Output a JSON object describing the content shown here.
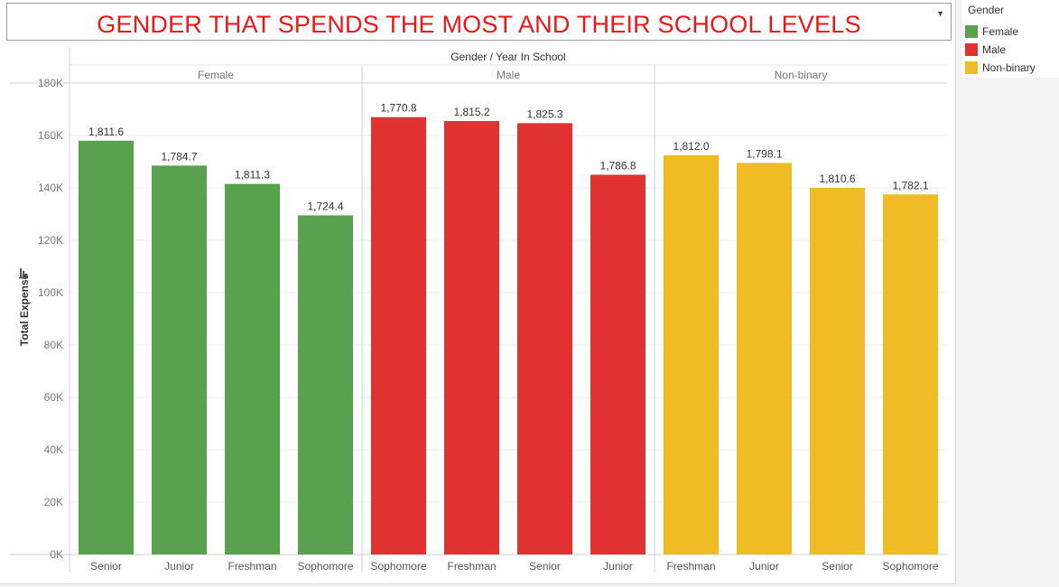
{
  "title": "GENDER THAT SPENDS THE MOST AND THEIR SCHOOL LEVELS",
  "legend": {
    "title": "Gender",
    "items": [
      {
        "label": "Female",
        "color": "#59a14f"
      },
      {
        "label": "Male",
        "color": "#e03231"
      },
      {
        "label": "Non-binary",
        "color": "#f0bc26"
      }
    ]
  },
  "chart_data": {
    "type": "bar",
    "header": "Gender  /  Year In School",
    "ylabel": "Total Expense",
    "ylim": [
      0,
      180000
    ],
    "yticks": [
      {
        "value": 0,
        "label": "0K"
      },
      {
        "value": 20000,
        "label": "20K"
      },
      {
        "value": 40000,
        "label": "40K"
      },
      {
        "value": 60000,
        "label": "60K"
      },
      {
        "value": 80000,
        "label": "80K"
      },
      {
        "value": 100000,
        "label": "100K"
      },
      {
        "value": 120000,
        "label": "120K"
      },
      {
        "value": 140000,
        "label": "140K"
      },
      {
        "value": 160000,
        "label": "160K"
      },
      {
        "value": 180000,
        "label": "180K"
      }
    ],
    "grid": true,
    "legend_position": "right",
    "groups": [
      {
        "name": "Female",
        "color": "#59a14f",
        "bars": [
          {
            "category": "Senior",
            "value": 158000,
            "label": "1,811.6"
          },
          {
            "category": "Junior",
            "value": 148500,
            "label": "1,784.7"
          },
          {
            "category": "Freshman",
            "value": 141500,
            "label": "1,811.3"
          },
          {
            "category": "Sophomore",
            "value": 129500,
            "label": "1,724.4"
          }
        ]
      },
      {
        "name": "Male",
        "color": "#e03231",
        "bars": [
          {
            "category": "Sophomore",
            "value": 167000,
            "label": "1,770.8"
          },
          {
            "category": "Freshman",
            "value": 165500,
            "label": "1,815.2"
          },
          {
            "category": "Senior",
            "value": 164700,
            "label": "1,825.3"
          },
          {
            "category": "Junior",
            "value": 145000,
            "label": "1,786.8"
          }
        ]
      },
      {
        "name": "Non-binary",
        "color": "#f0bc26",
        "bars": [
          {
            "category": "Freshman",
            "value": 152500,
            "label": "1,812.0"
          },
          {
            "category": "Junior",
            "value": 149500,
            "label": "1,798.1"
          },
          {
            "category": "Senior",
            "value": 140000,
            "label": "1,810.6"
          },
          {
            "category": "Sophomore",
            "value": 137500,
            "label": "1,782.1"
          }
        ]
      }
    ]
  }
}
